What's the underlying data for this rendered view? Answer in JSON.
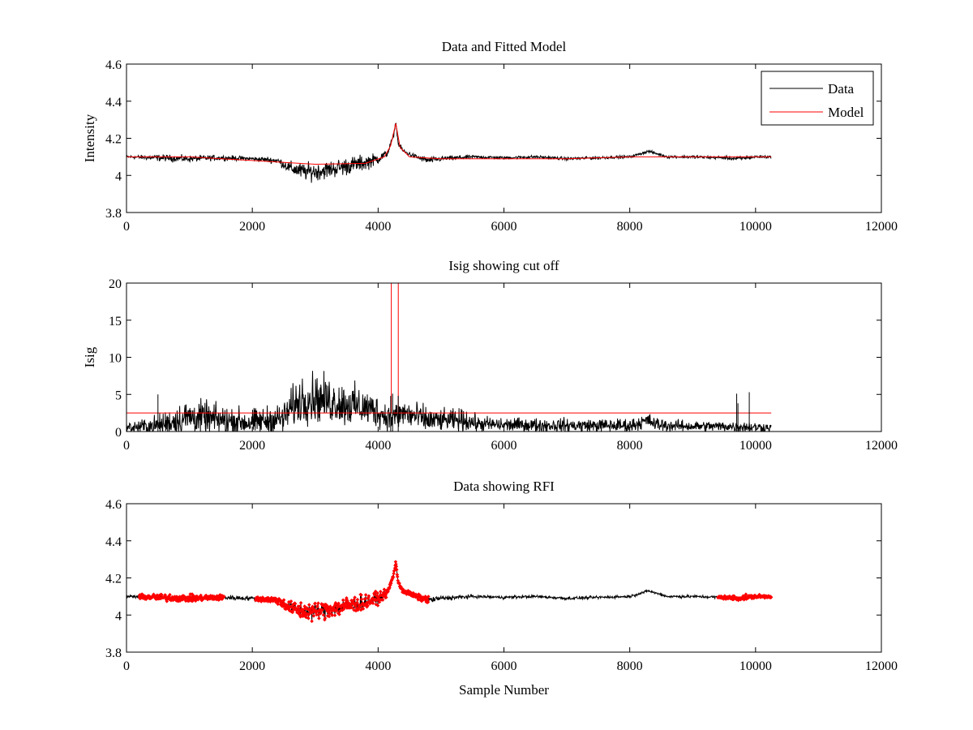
{
  "chart_data": [
    {
      "type": "line",
      "title": "Data and Fitted Model",
      "xlabel": "",
      "ylabel": "Intensity",
      "xlim": [
        0,
        12000
      ],
      "ylim": [
        3.8,
        4.6
      ],
      "xticks": [
        0,
        2000,
        4000,
        6000,
        8000,
        10000,
        12000
      ],
      "yticks": [
        3.8,
        4,
        4.2,
        4.4,
        4.6
      ],
      "xtick_labels": [
        "0",
        "2000",
        "4000",
        "6000",
        "8000",
        "10000",
        "12000"
      ],
      "ytick_labels": [
        "3.8",
        "4",
        "4.2",
        "4.4",
        "4.6"
      ],
      "legend": {
        "position": "top-right",
        "entries": [
          {
            "label": "Data",
            "color": "#000000"
          },
          {
            "label": "Model",
            "color": "#ff0000"
          }
        ]
      },
      "series": [
        {
          "name": "Data",
          "color": "#000000",
          "style": "noisy-line",
          "x": [
            0,
            500,
            1000,
            1500,
            2000,
            2400,
            2600,
            2800,
            3000,
            3200,
            3500,
            3800,
            4000,
            4150,
            4250,
            4280,
            4320,
            4400,
            4600,
            4800,
            5000,
            5500,
            6000,
            6500,
            7000,
            7500,
            8000,
            8300,
            8400,
            8600,
            9000,
            9500,
            9700,
            10000,
            10250
          ],
          "y": [
            4.1,
            4.095,
            4.09,
            4.095,
            4.09,
            4.08,
            4.04,
            4.02,
            4.02,
            4.03,
            4.05,
            4.07,
            4.09,
            4.12,
            4.22,
            4.29,
            4.17,
            4.13,
            4.1,
            4.08,
            4.09,
            4.1,
            4.095,
            4.1,
            4.09,
            4.095,
            4.1,
            4.13,
            4.12,
            4.1,
            4.1,
            4.095,
            4.09,
            4.1,
            4.1
          ],
          "noise": [
            0.006,
            0.015,
            0.015,
            0.012,
            0.01,
            0.015,
            0.03,
            0.04,
            0.04,
            0.04,
            0.04,
            0.035,
            0.025,
            0.015,
            0.01,
            0.005,
            0.01,
            0.012,
            0.012,
            0.015,
            0.012,
            0.008,
            0.007,
            0.007,
            0.007,
            0.007,
            0.006,
            0.006,
            0.006,
            0.006,
            0.007,
            0.007,
            0.012,
            0.008,
            0.006
          ]
        },
        {
          "name": "Model",
          "color": "#ff0000",
          "style": "line",
          "x": [
            0,
            1000,
            2000,
            3000,
            3800,
            4100,
            4200,
            4280,
            4350,
            4500,
            5000,
            6000,
            7000,
            8000,
            8400,
            9000,
            10000,
            10250
          ],
          "y": [
            4.1,
            4.1,
            4.08,
            4.06,
            4.065,
            4.1,
            4.16,
            4.28,
            4.15,
            4.1,
            4.09,
            4.09,
            4.09,
            4.1,
            4.1,
            4.1,
            4.1,
            4.1
          ]
        }
      ]
    },
    {
      "type": "line",
      "title": "Isig showing cut off",
      "xlabel": "",
      "ylabel": "Isig",
      "xlim": [
        0,
        12000
      ],
      "ylim": [
        0,
        20
      ],
      "xticks": [
        0,
        2000,
        4000,
        6000,
        8000,
        10000,
        12000
      ],
      "yticks": [
        0,
        5,
        10,
        15,
        20
      ],
      "xtick_labels": [
        "0",
        "2000",
        "4000",
        "6000",
        "8000",
        "10000",
        "12000"
      ],
      "ytick_labels": [
        "0",
        "5",
        "10",
        "15",
        "20"
      ],
      "series": [
        {
          "name": "Isig",
          "color": "#000000",
          "style": "noisy-positive",
          "x": [
            0,
            500,
            800,
            1000,
            1500,
            2000,
            2500,
            2600,
            2800,
            3000,
            3300,
            3600,
            3900,
            4200,
            4400,
            4800,
            5000,
            5400,
            5600,
            6000,
            7000,
            8000,
            8300,
            8400,
            8600,
            9000,
            9500,
            10000,
            10250
          ],
          "y": [
            0.5,
            0.8,
            1.5,
            2.0,
            1.5,
            1.2,
            1.8,
            3.0,
            4.5,
            4.5,
            4.0,
            3.5,
            3.0,
            1.8,
            2.5,
            1.5,
            1.5,
            1.5,
            1.0,
            0.9,
            0.8,
            0.8,
            1.5,
            1.0,
            0.8,
            0.7,
            0.7,
            0.6,
            0.5
          ],
          "noise": [
            0.6,
            1.2,
            1.8,
            2.0,
            1.8,
            1.5,
            1.8,
            2.2,
            2.8,
            2.8,
            2.5,
            2.4,
            2.0,
            1.5,
            1.8,
            1.5,
            1.2,
            1.3,
            0.9,
            0.8,
            0.8,
            0.8,
            0.8,
            0.8,
            0.7,
            0.6,
            0.6,
            0.6,
            0.5
          ]
        },
        {
          "name": "Cut off",
          "color": "#ff0000",
          "style": "line",
          "x": [
            0,
            10250
          ],
          "y": [
            2.5,
            2.5
          ]
        },
        {
          "name": "Cut off spike",
          "color": "#ff0000",
          "style": "line",
          "x": [
            4200,
            4210,
            4210,
            4310,
            4320,
            4320
          ],
          "y": [
            2.5,
            2.5,
            20,
            20,
            20,
            2.5
          ]
        }
      ],
      "spikes": {
        "x": [
          500,
          4200,
          4230,
          4320,
          9700,
          9720,
          9900
        ],
        "y": [
          5.0,
          4.8,
          5.1,
          4.8,
          5.1,
          3.8,
          5.3
        ],
        "color": "#000000"
      }
    },
    {
      "type": "line",
      "title": "Data showing RFI",
      "xlabel": "Sample Number",
      "ylabel": "",
      "xlim": [
        0,
        12000
      ],
      "ylim": [
        3.8,
        4.6
      ],
      "xticks": [
        0,
        2000,
        4000,
        6000,
        8000,
        10000,
        12000
      ],
      "yticks": [
        3.8,
        4,
        4.2,
        4.4,
        4.6
      ],
      "xtick_labels": [
        "0",
        "2000",
        "4000",
        "6000",
        "8000",
        "10000",
        "12000"
      ],
      "ytick_labels": [
        "3.8",
        "4",
        "4.2",
        "4.4",
        "4.6"
      ],
      "series": [
        {
          "name": "Data",
          "color": "#000000",
          "style": "noisy-line",
          "x": [
            0,
            500,
            1000,
            1500,
            2000,
            2400,
            2600,
            2800,
            3000,
            3200,
            3500,
            3800,
            4000,
            4150,
            4250,
            4280,
            4320,
            4400,
            4600,
            4800,
            5000,
            5500,
            6000,
            6500,
            7000,
            7500,
            8000,
            8300,
            8400,
            8600,
            9000,
            9500,
            9700,
            10000,
            10250
          ],
          "y": [
            4.1,
            4.095,
            4.09,
            4.095,
            4.09,
            4.08,
            4.04,
            4.02,
            4.02,
            4.03,
            4.05,
            4.07,
            4.09,
            4.12,
            4.22,
            4.29,
            4.17,
            4.13,
            4.1,
            4.08,
            4.09,
            4.1,
            4.095,
            4.1,
            4.09,
            4.095,
            4.1,
            4.13,
            4.12,
            4.1,
            4.1,
            4.095,
            4.09,
            4.1,
            4.1
          ],
          "noise": [
            0.006,
            0.015,
            0.015,
            0.012,
            0.01,
            0.015,
            0.03,
            0.04,
            0.04,
            0.04,
            0.04,
            0.035,
            0.025,
            0.015,
            0.01,
            0.005,
            0.01,
            0.012,
            0.012,
            0.015,
            0.012,
            0.008,
            0.007,
            0.007,
            0.007,
            0.007,
            0.006,
            0.006,
            0.006,
            0.006,
            0.007,
            0.007,
            0.012,
            0.008,
            0.006
          ]
        }
      ],
      "rfi_ranges": [
        [
          200,
          1550
        ],
        [
          2050,
          4800
        ],
        [
          9400,
          10250
        ]
      ],
      "rfi_color": "#ff0000"
    }
  ]
}
